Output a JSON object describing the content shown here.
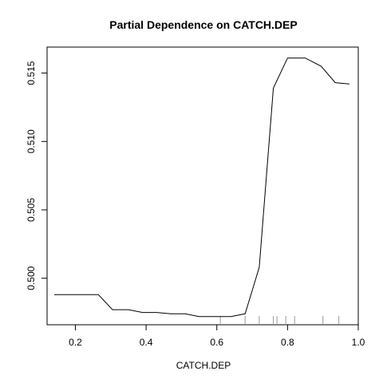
{
  "chart_data": {
    "type": "line",
    "title": "Partial Dependence on CATCH.DEP",
    "xlabel": "CATCH.DEP",
    "ylabel": "",
    "xlim": [
      0.12,
      1.0
    ],
    "ylim": [
      0.4966,
      0.5169
    ],
    "x_ticks": [
      0.2,
      0.4,
      0.6,
      0.8,
      1.0
    ],
    "x_tick_labels": [
      "0.2",
      "0.4",
      "0.6",
      "0.8",
      "1.0"
    ],
    "y_ticks": [
      0.5,
      0.505,
      0.51,
      0.515
    ],
    "y_tick_labels": [
      "0.500",
      "0.505",
      "0.510",
      "0.515"
    ],
    "series": [
      {
        "x": [
          0.14,
          0.18,
          0.22,
          0.265,
          0.305,
          0.35,
          0.39,
          0.43,
          0.47,
          0.51,
          0.55,
          0.59,
          0.64,
          0.68,
          0.72,
          0.76,
          0.8,
          0.85,
          0.895,
          0.935,
          0.975
        ],
        "y": [
          0.4988,
          0.4988,
          0.4988,
          0.4988,
          0.4977,
          0.4977,
          0.4975,
          0.4975,
          0.4974,
          0.4974,
          0.4972,
          0.4972,
          0.4972,
          0.4974,
          0.5008,
          0.5139,
          0.5161,
          0.5161,
          0.5155,
          0.5143,
          0.5142
        ]
      }
    ],
    "rug": [
      0.61,
      0.68,
      0.72,
      0.76,
      0.77,
      0.795,
      0.82,
      0.9,
      0.945
    ],
    "grid": false,
    "colors": {
      "line": "#000000",
      "rug": "#999999",
      "axis": "#000000"
    }
  }
}
